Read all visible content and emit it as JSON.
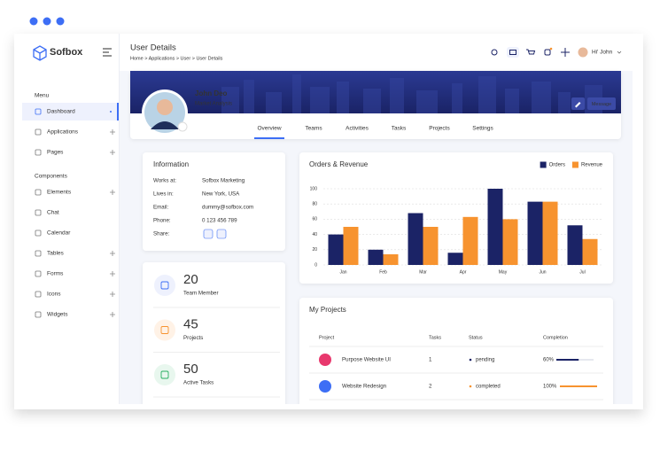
{
  "brand": "Sofbox",
  "header": {
    "title": "User Details",
    "breadcrumb": "Home > Applications > User > User Details",
    "greeting": "Hi' John"
  },
  "sidebar": {
    "sections": [
      {
        "title": "Menu",
        "items": [
          "Dashboard",
          "Applications",
          "Pages"
        ]
      },
      {
        "title": "Components",
        "items": [
          "Elements",
          "Chat",
          "Calendar",
          "Tables",
          "Forms",
          "Icons",
          "Widgets"
        ]
      }
    ]
  },
  "profile": {
    "name": "John Deo",
    "role": "Market Analysis",
    "button": "Message",
    "tabs": [
      "Overview",
      "Teams",
      "Activities",
      "Tasks",
      "Projects",
      "Settings"
    ]
  },
  "information": {
    "title": "Information",
    "rows": [
      [
        "Works at:",
        "Sofbox Marketing"
      ],
      [
        "Lives in:",
        "New York, USA"
      ],
      [
        "Email:",
        "dummy@sofbox.com"
      ],
      [
        "Phone:",
        "0 123 456 789"
      ]
    ],
    "share": "Share:"
  },
  "stats": [
    {
      "value": 20,
      "label": "Team Member"
    },
    {
      "value": 45,
      "label": "Projects"
    },
    {
      "value": 50,
      "label": "Active Tasks"
    }
  ],
  "chart_data": {
    "type": "bar",
    "title": "Orders & Revenue",
    "categories": [
      "Jan",
      "Feb",
      "Mar",
      "Apr",
      "May",
      "Jun",
      "Jul"
    ],
    "series": [
      {
        "name": "Orders",
        "color": "#1b2366",
        "values": [
          40,
          20,
          68,
          16,
          100,
          83,
          52
        ]
      },
      {
        "name": "Revenue",
        "color": "#f7932f",
        "values": [
          50,
          14,
          50,
          63,
          60,
          83,
          34
        ]
      }
    ],
    "ylim": [
      0,
      100
    ],
    "yticks": [
      0,
      20,
      40,
      60,
      80,
      100
    ],
    "grid": true,
    "legend": "top-right"
  },
  "projects": {
    "title": "My Projects",
    "columns": [
      "Project",
      "Tasks",
      "Status",
      "Completion"
    ],
    "rows": [
      {
        "name": "Purpose Website UI",
        "tasks": 1,
        "status": "pending",
        "completion": 60,
        "completion_label": "60%"
      },
      {
        "name": "Website Redesign",
        "tasks": 2,
        "status": "completed",
        "completion": 100,
        "completion_label": "100%"
      }
    ]
  }
}
